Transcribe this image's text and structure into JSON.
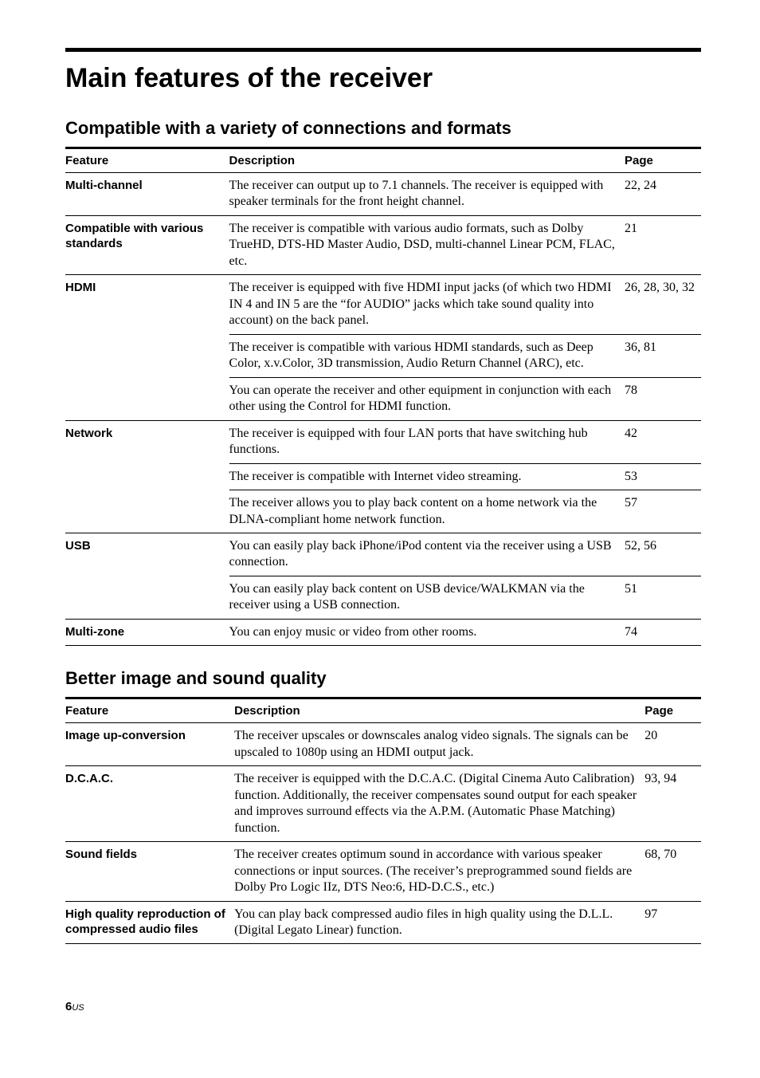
{
  "title": "Main features of the receiver",
  "section1": {
    "heading": "Compatible with a variety of connections and formats",
    "columns": {
      "feature": "Feature",
      "description": "Description",
      "page": "Page"
    },
    "rows": [
      {
        "feature": "Multi-channel",
        "desc": "The receiver can output up to 7.1 channels.\nThe receiver is equipped with speaker terminals for the front height channel.",
        "page": "22, 24"
      },
      {
        "feature": "Compatible with various standards",
        "desc": "The receiver is compatible with various audio formats, such as Dolby TrueHD, DTS-HD Master Audio, DSD, multi-channel Linear PCM, FLAC, etc.",
        "page": "21"
      },
      {
        "feature": "HDMI",
        "desc": "The receiver is equipped with five HDMI input jacks (of which two HDMI IN 4 and IN 5 are the “for AUDIO” jacks which take sound quality into account) on the back panel.",
        "page": "26, 28, 30, 32"
      },
      {
        "feature": "",
        "desc": "The receiver is compatible with various HDMI standards, such as Deep Color, x.v.Color, 3D transmission, Audio Return Channel (ARC), etc.",
        "page": "36, 81"
      },
      {
        "feature": "",
        "desc": "You can operate the receiver and other equipment in conjunction with each other using the Control for HDMI function.",
        "page": "78"
      },
      {
        "feature": "Network",
        "desc": "The receiver is equipped with four LAN ports that have switching hub functions.",
        "page": "42"
      },
      {
        "feature": "",
        "desc": "The receiver is compatible with Internet video streaming.",
        "page": "53"
      },
      {
        "feature": "",
        "desc": "The receiver allows you to play back content on a home network via the DLNA-compliant home network function.",
        "page": "57"
      },
      {
        "feature": "USB",
        "desc": "You can easily play back iPhone/iPod content via the receiver using a USB connection.",
        "page": "52, 56"
      },
      {
        "feature": "",
        "desc": "You can easily play back content on USB device/WALKMAN via the receiver using a USB connection.",
        "page": "51"
      },
      {
        "feature": "Multi-zone",
        "desc": "You can enjoy music or video from other rooms.",
        "page": "74"
      }
    ],
    "featureCellNoBorder": [
      2,
      3,
      5,
      6,
      8
    ]
  },
  "section2": {
    "heading": "Better image and sound quality",
    "columns": {
      "feature": "Feature",
      "description": "Description",
      "page": "Page"
    },
    "rows": [
      {
        "feature": "Image up-conversion",
        "desc": "The receiver upscales or downscales analog video signals. The signals can be upscaled to 1080p using an HDMI output jack.",
        "page": "20"
      },
      {
        "feature": "D.C.A.C.",
        "desc": "The receiver is equipped with the D.C.A.C. (Digital Cinema Auto Calibration) function. Additionally, the receiver compensates sound output for each speaker and improves surround effects via the A.P.M. (Automatic Phase Matching) function.",
        "page": "93, 94"
      },
      {
        "feature": "Sound fields",
        "desc": "The receiver creates optimum sound in accordance with various speaker connections or input sources. (The receiver’s preprogrammed sound fields are Dolby Pro Logic IIz, DTS Neo:6, HD-D.C.S., etc.)",
        "page": "68, 70"
      },
      {
        "feature": "High quality reproduction of compressed audio files",
        "desc": "You can play back compressed audio files in high quality using the D.L.L. (Digital Legato Linear) function.",
        "page": "97"
      }
    ]
  },
  "footer": {
    "page": "6",
    "suffix": "US"
  }
}
